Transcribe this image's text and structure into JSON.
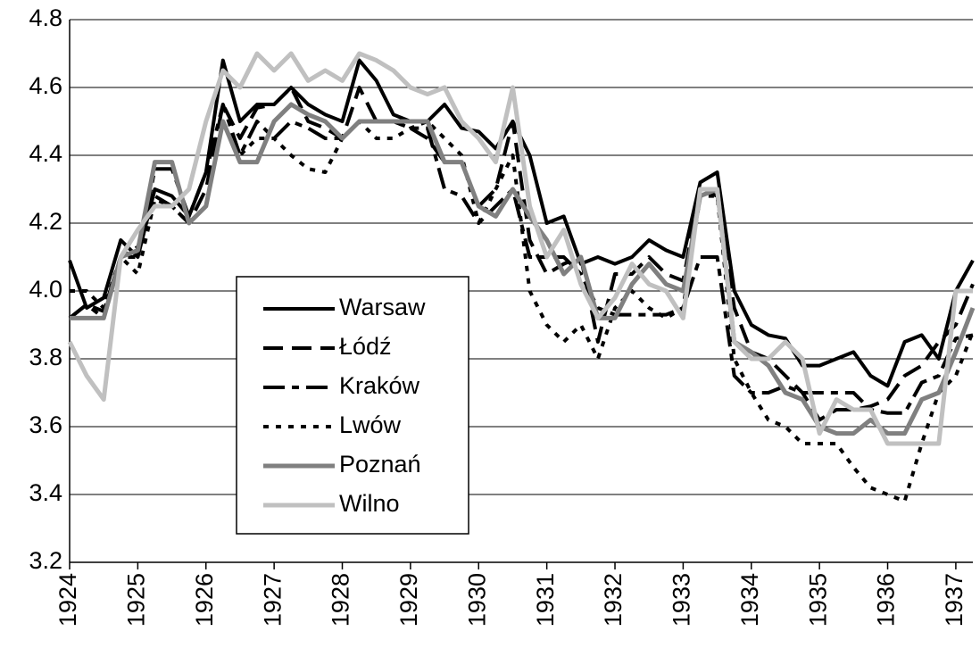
{
  "chart_data": {
    "type": "line",
    "x": [
      1924,
      1924.25,
      1924.5,
      1924.75,
      1925,
      1925.25,
      1925.5,
      1925.75,
      1926,
      1926.25,
      1926.5,
      1926.75,
      1927,
      1927.25,
      1927.5,
      1927.75,
      1928,
      1928.25,
      1928.5,
      1928.75,
      1929,
      1929.25,
      1929.5,
      1929.75,
      1930,
      1930.25,
      1930.5,
      1930.75,
      1931,
      1931.25,
      1931.5,
      1931.75,
      1932,
      1932.25,
      1932.5,
      1932.75,
      1933,
      1933.25,
      1933.5,
      1933.75,
      1934,
      1934.25,
      1934.5,
      1934.75,
      1935,
      1935.25,
      1935.5,
      1935.75,
      1936,
      1936.25,
      1936.5,
      1936.75,
      1937,
      1937.25
    ],
    "series": [
      {
        "name": "Warsaw",
        "color": "#000000",
        "values": [
          4.09,
          3.95,
          3.98,
          4.15,
          4.1,
          4.3,
          4.28,
          4.22,
          4.35,
          4.68,
          4.5,
          4.55,
          4.55,
          4.6,
          4.55,
          4.52,
          4.5,
          4.68,
          4.62,
          4.52,
          4.5,
          4.5,
          4.55,
          4.48,
          4.47,
          4.42,
          4.5,
          4.4,
          4.2,
          4.22,
          4.08,
          4.1,
          4.08,
          4.1,
          4.15,
          4.12,
          4.1,
          4.32,
          4.35,
          4.0,
          3.9,
          3.87,
          3.86,
          3.78,
          3.78,
          3.8,
          3.82,
          3.75,
          3.72,
          3.85,
          3.87,
          3.8,
          4.0,
          4.09
        ]
      },
      {
        "name": "Łódź",
        "color": "#000000",
        "values": [
          3.92,
          3.96,
          3.94,
          4.1,
          4.13,
          4.28,
          4.25,
          4.2,
          4.3,
          4.55,
          4.45,
          4.54,
          4.55,
          4.6,
          4.5,
          4.48,
          4.45,
          4.6,
          4.5,
          4.5,
          4.48,
          4.45,
          4.38,
          4.38,
          4.25,
          4.3,
          4.5,
          4.15,
          4.05,
          4.08,
          4.1,
          3.85,
          4.05,
          4.05,
          4.1,
          4.05,
          4.03,
          4.3,
          4.28,
          3.95,
          3.82,
          3.8,
          3.75,
          3.7,
          3.62,
          3.65,
          3.65,
          3.66,
          3.68,
          3.75,
          3.78,
          3.85,
          3.9,
          4.02
        ]
      },
      {
        "name": "Kraków",
        "color": "#000000",
        "values": [
          3.92,
          3.96,
          3.92,
          4.1,
          4.1,
          4.36,
          4.36,
          4.22,
          4.35,
          4.55,
          4.4,
          4.5,
          4.45,
          4.5,
          4.48,
          4.45,
          4.45,
          4.5,
          4.5,
          4.5,
          4.48,
          4.48,
          4.3,
          4.28,
          4.2,
          4.25,
          4.3,
          4.1,
          4.1,
          4.1,
          4.05,
          3.95,
          3.93,
          3.93,
          3.93,
          3.93,
          3.95,
          4.1,
          4.1,
          3.75,
          3.7,
          3.7,
          3.72,
          3.7,
          3.7,
          3.7,
          3.7,
          3.65,
          3.64,
          3.64,
          3.73,
          3.75,
          3.86,
          3.87
        ]
      },
      {
        "name": "Lwów",
        "color": "#000000",
        "values": [
          4.0,
          4.0,
          3.95,
          4.1,
          4.05,
          4.27,
          4.25,
          4.2,
          4.25,
          4.5,
          4.4,
          4.45,
          4.45,
          4.4,
          4.36,
          4.35,
          4.45,
          4.5,
          4.45,
          4.45,
          4.48,
          4.5,
          4.45,
          4.4,
          4.2,
          4.3,
          4.4,
          4.0,
          3.9,
          3.85,
          3.9,
          3.8,
          3.95,
          4.0,
          3.95,
          3.92,
          3.95,
          4.28,
          4.28,
          3.8,
          3.7,
          3.62,
          3.6,
          3.55,
          3.55,
          3.55,
          3.48,
          3.42,
          3.4,
          3.38,
          3.55,
          3.7,
          3.75,
          3.88
        ]
      },
      {
        "name": "Poznań",
        "color": "#808080",
        "values": [
          3.92,
          3.92,
          3.92,
          4.1,
          4.12,
          4.38,
          4.38,
          4.2,
          4.25,
          4.5,
          4.38,
          4.38,
          4.5,
          4.55,
          4.52,
          4.5,
          4.45,
          4.5,
          4.5,
          4.5,
          4.5,
          4.5,
          4.38,
          4.38,
          4.25,
          4.22,
          4.3,
          4.22,
          4.15,
          4.05,
          4.1,
          3.92,
          3.92,
          4.02,
          4.08,
          4.02,
          4.0,
          4.28,
          4.3,
          3.85,
          3.82,
          3.78,
          3.7,
          3.68,
          3.6,
          3.58,
          3.58,
          3.62,
          3.58,
          3.58,
          3.68,
          3.7,
          3.82,
          3.95
        ]
      },
      {
        "name": "Wilno",
        "color": "#c0c0c0",
        "values": [
          3.85,
          3.75,
          3.68,
          4.1,
          4.18,
          4.25,
          4.25,
          4.3,
          4.5,
          4.65,
          4.6,
          4.7,
          4.65,
          4.7,
          4.62,
          4.65,
          4.62,
          4.7,
          4.68,
          4.65,
          4.6,
          4.58,
          4.6,
          4.5,
          4.45,
          4.38,
          4.6,
          4.25,
          4.1,
          4.18,
          4.02,
          3.92,
          3.98,
          4.08,
          4.02,
          4.0,
          3.92,
          4.3,
          4.3,
          3.85,
          3.8,
          3.8,
          3.85,
          3.8,
          3.58,
          3.68,
          3.65,
          3.65,
          3.55,
          3.55,
          3.55,
          3.55,
          4.0,
          4.0
        ]
      }
    ],
    "xlim": [
      1924,
      1937.25
    ],
    "xticks": [
      1924,
      1925,
      1926,
      1927,
      1928,
      1929,
      1930,
      1931,
      1932,
      1933,
      1934,
      1935,
      1936,
      1937
    ],
    "ylim": [
      3.2,
      4.8
    ],
    "yticks": [
      3.2,
      3.4,
      3.6,
      3.8,
      {
        "value": 4,
        "label": "4.0"
      },
      4.2,
      4.4,
      4.6,
      4.8
    ],
    "grid": true
  }
}
